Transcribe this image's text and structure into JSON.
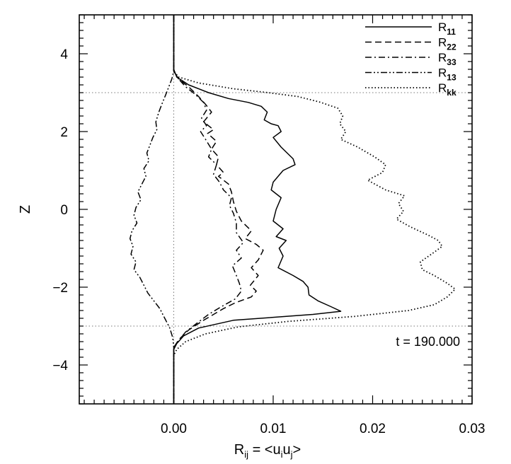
{
  "chart_data": {
    "type": "line",
    "xlabel": {
      "main": "R",
      "sub": "ij",
      "rest": " = <u",
      "sub2": "i",
      "mid": "u",
      "sub3": "j",
      "end": ">"
    },
    "ylabel": "Z",
    "xlim": [
      -0.0095,
      0.03
    ],
    "ylim": [
      -5,
      5
    ],
    "x_ticks": [
      0.0,
      0.01,
      0.02,
      0.03
    ],
    "x_tick_labels": [
      "0.00",
      "0.01",
      "0.02",
      "0.03"
    ],
    "x_minor_step": 0.001,
    "y_ticks": [
      -4,
      -2,
      0,
      2,
      4
    ],
    "y_tick_labels": [
      "−4",
      "−2",
      "0",
      "2",
      "4"
    ],
    "y_minor_step": 0.2,
    "grid": false,
    "reference_lines": {
      "x": [
        0.0
      ],
      "y": [
        3.0,
        -3.0
      ]
    },
    "annotation": "t = 190.000",
    "legend_position": "top-right",
    "series": [
      {
        "name": "R11",
        "label_main": "R",
        "label_sub": "11",
        "dash": "solid",
        "points": [
          [
            0.0,
            5.0
          ],
          [
            0.0,
            3.6
          ],
          [
            0.0003,
            3.4
          ],
          [
            0.0015,
            3.2
          ],
          [
            0.0035,
            3.0
          ],
          [
            0.0055,
            2.85
          ],
          [
            0.0075,
            2.75
          ],
          [
            0.0088,
            2.65
          ],
          [
            0.0094,
            2.5
          ],
          [
            0.0091,
            2.3
          ],
          [
            0.0098,
            2.2
          ],
          [
            0.0105,
            2.15
          ],
          [
            0.0108,
            2.0
          ],
          [
            0.01,
            1.85
          ],
          [
            0.0108,
            1.6
          ],
          [
            0.012,
            1.3
          ],
          [
            0.0122,
            1.15
          ],
          [
            0.011,
            1.0
          ],
          [
            0.01,
            0.7
          ],
          [
            0.0098,
            0.5
          ],
          [
            0.0108,
            0.3
          ],
          [
            0.0103,
            0.0
          ],
          [
            0.01,
            -0.3
          ],
          [
            0.011,
            -0.5
          ],
          [
            0.0103,
            -0.7
          ],
          [
            0.0113,
            -0.8
          ],
          [
            0.0106,
            -1.0
          ],
          [
            0.011,
            -1.2
          ],
          [
            0.0105,
            -1.5
          ],
          [
            0.012,
            -1.7
          ],
          [
            0.013,
            -1.85
          ],
          [
            0.0135,
            -2.0
          ],
          [
            0.0136,
            -2.2
          ],
          [
            0.0145,
            -2.35
          ],
          [
            0.0158,
            -2.5
          ],
          [
            0.0168,
            -2.62
          ],
          [
            0.014,
            -2.7
          ],
          [
            0.006,
            -2.85
          ],
          [
            0.0025,
            -3.05
          ],
          [
            0.001,
            -3.25
          ],
          [
            0.0003,
            -3.45
          ],
          [
            0.0,
            -3.6
          ],
          [
            0.0,
            -5.0
          ]
        ]
      },
      {
        "name": "R22",
        "label_main": "R",
        "label_sub": "22",
        "dash": "dashed",
        "points": [
          [
            0.0,
            5.0
          ],
          [
            0.0,
            3.55
          ],
          [
            0.0005,
            3.35
          ],
          [
            0.0015,
            3.15
          ],
          [
            0.0025,
            2.9
          ],
          [
            0.0032,
            2.7
          ],
          [
            0.0038,
            2.5
          ],
          [
            0.003,
            2.25
          ],
          [
            0.004,
            2.05
          ],
          [
            0.0034,
            1.95
          ],
          [
            0.0043,
            1.75
          ],
          [
            0.0038,
            1.55
          ],
          [
            0.0045,
            1.35
          ],
          [
            0.0043,
            1.15
          ],
          [
            0.005,
            0.95
          ],
          [
            0.0045,
            0.85
          ],
          [
            0.0055,
            0.65
          ],
          [
            0.0058,
            0.45
          ],
          [
            0.006,
            0.2
          ],
          [
            0.0063,
            -0.05
          ],
          [
            0.0068,
            -0.3
          ],
          [
            0.0078,
            -0.55
          ],
          [
            0.0072,
            -0.75
          ],
          [
            0.0083,
            -0.9
          ],
          [
            0.009,
            -1.05
          ],
          [
            0.0085,
            -1.3
          ],
          [
            0.0078,
            -1.5
          ],
          [
            0.0085,
            -1.7
          ],
          [
            0.0077,
            -1.95
          ],
          [
            0.0083,
            -2.1
          ],
          [
            0.0078,
            -2.25
          ],
          [
            0.0062,
            -2.4
          ],
          [
            0.005,
            -2.55
          ],
          [
            0.003,
            -2.85
          ],
          [
            0.0015,
            -3.1
          ],
          [
            0.0005,
            -3.35
          ],
          [
            0.0,
            -3.55
          ],
          [
            0.0,
            -5.0
          ]
        ]
      },
      {
        "name": "R33",
        "label_main": "R",
        "label_sub": "33",
        "dash": "dashdot",
        "points": [
          [
            0.0,
            5.0
          ],
          [
            0.0,
            3.55
          ],
          [
            0.0005,
            3.35
          ],
          [
            0.0012,
            3.15
          ],
          [
            0.0022,
            2.95
          ],
          [
            0.003,
            2.75
          ],
          [
            0.0033,
            2.55
          ],
          [
            0.0028,
            2.35
          ],
          [
            0.0033,
            2.15
          ],
          [
            0.0027,
            2.0
          ],
          [
            0.0032,
            1.8
          ],
          [
            0.0038,
            1.55
          ],
          [
            0.0035,
            1.35
          ],
          [
            0.0043,
            1.15
          ],
          [
            0.004,
            0.9
          ],
          [
            0.0046,
            0.7
          ],
          [
            0.005,
            0.5
          ],
          [
            0.0058,
            0.3
          ],
          [
            0.0056,
            0.1
          ],
          [
            0.006,
            -0.1
          ],
          [
            0.0063,
            -0.35
          ],
          [
            0.0063,
            -0.6
          ],
          [
            0.007,
            -0.85
          ],
          [
            0.0063,
            -1.05
          ],
          [
            0.0068,
            -1.25
          ],
          [
            0.0059,
            -1.45
          ],
          [
            0.0063,
            -1.7
          ],
          [
            0.0066,
            -1.9
          ],
          [
            0.0068,
            -2.1
          ],
          [
            0.0062,
            -2.3
          ],
          [
            0.0048,
            -2.5
          ],
          [
            0.0035,
            -2.7
          ],
          [
            0.0022,
            -2.95
          ],
          [
            0.0012,
            -3.15
          ],
          [
            0.0004,
            -3.4
          ],
          [
            0.0,
            -3.55
          ],
          [
            0.0,
            -5.0
          ]
        ]
      },
      {
        "name": "R13",
        "label_main": "R",
        "label_sub": "13",
        "dash": "dashdotdot",
        "points": [
          [
            0.0,
            5.0
          ],
          [
            0.0,
            3.55
          ],
          [
            -0.0002,
            3.35
          ],
          [
            -0.0005,
            3.15
          ],
          [
            -0.0008,
            2.95
          ],
          [
            -0.0012,
            2.7
          ],
          [
            -0.0015,
            2.5
          ],
          [
            -0.0018,
            2.25
          ],
          [
            -0.0017,
            2.05
          ],
          [
            -0.0021,
            1.85
          ],
          [
            -0.0024,
            1.65
          ],
          [
            -0.0027,
            1.45
          ],
          [
            -0.0025,
            1.25
          ],
          [
            -0.003,
            1.05
          ],
          [
            -0.0028,
            0.85
          ],
          [
            -0.0032,
            0.65
          ],
          [
            -0.0036,
            0.45
          ],
          [
            -0.0033,
            0.25
          ],
          [
            -0.0038,
            0.05
          ],
          [
            -0.004,
            -0.15
          ],
          [
            -0.0037,
            -0.35
          ],
          [
            -0.0042,
            -0.55
          ],
          [
            -0.0044,
            -0.75
          ],
          [
            -0.0041,
            -0.95
          ],
          [
            -0.0043,
            -1.15
          ],
          [
            -0.0038,
            -1.35
          ],
          [
            -0.004,
            -1.55
          ],
          [
            -0.0034,
            -1.75
          ],
          [
            -0.003,
            -1.95
          ],
          [
            -0.0026,
            -2.15
          ],
          [
            -0.002,
            -2.35
          ],
          [
            -0.0014,
            -2.55
          ],
          [
            -0.0009,
            -2.8
          ],
          [
            -0.0004,
            -3.05
          ],
          [
            -0.0001,
            -3.3
          ],
          [
            0.0,
            -3.55
          ],
          [
            0.0,
            -5.0
          ]
        ]
      },
      {
        "name": "Rkk",
        "label_main": "R",
        "label_sub": "kk",
        "dash": "dotted",
        "points": [
          [
            0.0,
            5.0
          ],
          [
            0.0,
            3.55
          ],
          [
            0.0005,
            3.4
          ],
          [
            0.0025,
            3.25
          ],
          [
            0.006,
            3.1
          ],
          [
            0.0095,
            3.0
          ],
          [
            0.0125,
            2.9
          ],
          [
            0.0148,
            2.75
          ],
          [
            0.0165,
            2.6
          ],
          [
            0.017,
            2.4
          ],
          [
            0.0167,
            2.2
          ],
          [
            0.0173,
            2.0
          ],
          [
            0.0168,
            1.8
          ],
          [
            0.0185,
            1.6
          ],
          [
            0.0202,
            1.35
          ],
          [
            0.0213,
            1.15
          ],
          [
            0.021,
            0.95
          ],
          [
            0.0195,
            0.75
          ],
          [
            0.0213,
            0.5
          ],
          [
            0.0232,
            0.35
          ],
          [
            0.0226,
            0.15
          ],
          [
            0.0231,
            -0.05
          ],
          [
            0.0224,
            -0.25
          ],
          [
            0.0238,
            -0.45
          ],
          [
            0.0255,
            -0.65
          ],
          [
            0.0266,
            -0.8
          ],
          [
            0.027,
            -0.95
          ],
          [
            0.0262,
            -1.1
          ],
          [
            0.0248,
            -1.35
          ],
          [
            0.025,
            -1.55
          ],
          [
            0.0262,
            -1.7
          ],
          [
            0.0275,
            -1.9
          ],
          [
            0.0283,
            -2.05
          ],
          [
            0.0275,
            -2.25
          ],
          [
            0.0262,
            -2.45
          ],
          [
            0.0236,
            -2.6
          ],
          [
            0.0182,
            -2.75
          ],
          [
            0.0115,
            -2.88
          ],
          [
            0.0065,
            -3.02
          ],
          [
            0.0032,
            -3.2
          ],
          [
            0.0012,
            -3.4
          ],
          [
            0.0003,
            -3.6
          ],
          [
            0.0,
            -3.75
          ],
          [
            0.0,
            -5.0
          ]
        ]
      }
    ]
  }
}
